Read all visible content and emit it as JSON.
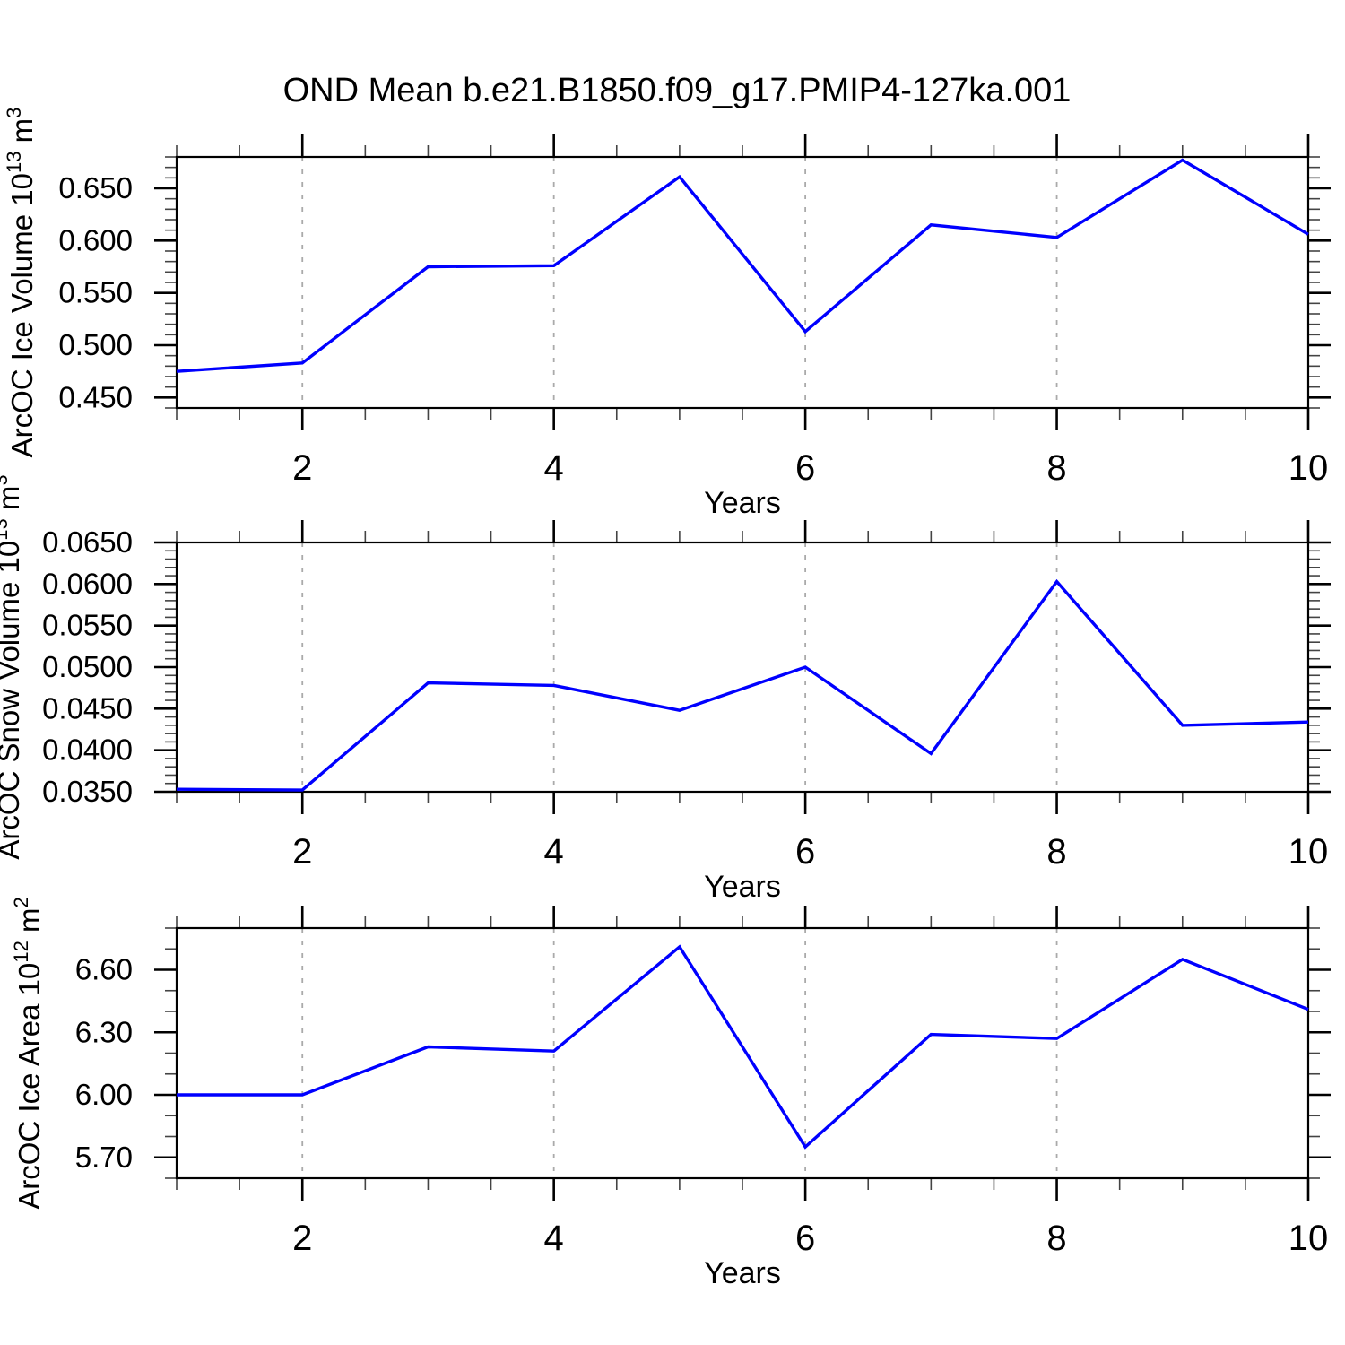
{
  "title": "OND Mean b.e21.B1850.f09_g17.PMIP4-127ka.001",
  "style": {
    "line_color": "#0000ff",
    "grid_color": "#aaaaaa",
    "axis_color": "#000000",
    "minor_tick_color": "#444444"
  },
  "chart_data": [
    {
      "type": "line",
      "name": "arcoc-ice-volume",
      "xlabel": "Years",
      "ylabel_parts": [
        [
          "ArcOC Ice Volume 10",
          false
        ],
        [
          "13",
          true
        ],
        [
          " m",
          false
        ],
        [
          "3",
          true
        ]
      ],
      "x": [
        1,
        2,
        3,
        4,
        5,
        6,
        7,
        8,
        9,
        10
      ],
      "values": [
        0.475,
        0.483,
        0.575,
        0.576,
        0.661,
        0.513,
        0.615,
        0.603,
        0.677,
        0.606
      ],
      "xlim": [
        1,
        10
      ],
      "ylim": [
        0.44,
        0.68
      ],
      "xticks": {
        "major": [
          2,
          4,
          6,
          8,
          10
        ],
        "labels": [
          "2",
          "4",
          "6",
          "8",
          "10"
        ],
        "minor_step": 0.5
      },
      "yticks": {
        "major": [
          0.45,
          0.5,
          0.55,
          0.6,
          0.65
        ],
        "labels": [
          "0.450",
          "0.500",
          "0.550",
          "0.600",
          "0.650"
        ],
        "minor_step": 0.01
      },
      "grid_x": [
        2,
        4,
        6,
        8
      ],
      "grid_style": "dashed-vertical",
      "line_color": "#0000ff"
    },
    {
      "type": "line",
      "name": "arcoc-snow-volume",
      "xlabel": "Years",
      "ylabel_parts": [
        [
          "ArcOC Snow Volume 10",
          false
        ],
        [
          "13",
          true
        ],
        [
          " m",
          false
        ],
        [
          "3",
          true
        ]
      ],
      "x": [
        1,
        2,
        3,
        4,
        5,
        6,
        7,
        8,
        9,
        10
      ],
      "values": [
        0.0353,
        0.0352,
        0.0481,
        0.0478,
        0.0448,
        0.05,
        0.0396,
        0.0603,
        0.043,
        0.0434
      ],
      "xlim": [
        1,
        10
      ],
      "ylim": [
        0.035,
        0.065
      ],
      "xticks": {
        "major": [
          2,
          4,
          6,
          8,
          10
        ],
        "labels": [
          "2",
          "4",
          "6",
          "8",
          "10"
        ],
        "minor_step": 0.5
      },
      "yticks": {
        "major": [
          0.035,
          0.04,
          0.045,
          0.05,
          0.055,
          0.06,
          0.065
        ],
        "labels": [
          "0.0350",
          "0.0400",
          "0.0450",
          "0.0500",
          "0.0550",
          "0.0600",
          "0.0650"
        ],
        "minor_step": 0.001
      },
      "grid_x": [
        2,
        4,
        6,
        8
      ],
      "grid_style": "dashed-vertical",
      "line_color": "#0000ff"
    },
    {
      "type": "line",
      "name": "arcoc-ice-area",
      "xlabel": "Years",
      "ylabel_parts": [
        [
          "ArcOC Ice Area 10",
          false
        ],
        [
          "12",
          true
        ],
        [
          " m",
          false
        ],
        [
          "2",
          true
        ]
      ],
      "x": [
        1,
        2,
        3,
        4,
        5,
        6,
        7,
        8,
        9,
        10
      ],
      "values": [
        6.0,
        6.0,
        6.23,
        6.21,
        6.71,
        5.75,
        6.29,
        6.27,
        6.65,
        6.41
      ],
      "xlim": [
        1,
        10
      ],
      "ylim": [
        5.6,
        6.8
      ],
      "xticks": {
        "major": [
          2,
          4,
          6,
          8,
          10
        ],
        "labels": [
          "2",
          "4",
          "6",
          "8",
          "10"
        ],
        "minor_step": 0.5
      },
      "yticks": {
        "major": [
          5.7,
          6.0,
          6.3,
          6.6
        ],
        "labels": [
          "5.70",
          "6.00",
          "6.30",
          "6.60"
        ],
        "minor_step": 0.1
      },
      "grid_x": [
        2,
        4,
        6,
        8
      ],
      "grid_style": "dashed-vertical",
      "line_color": "#0000ff"
    }
  ]
}
